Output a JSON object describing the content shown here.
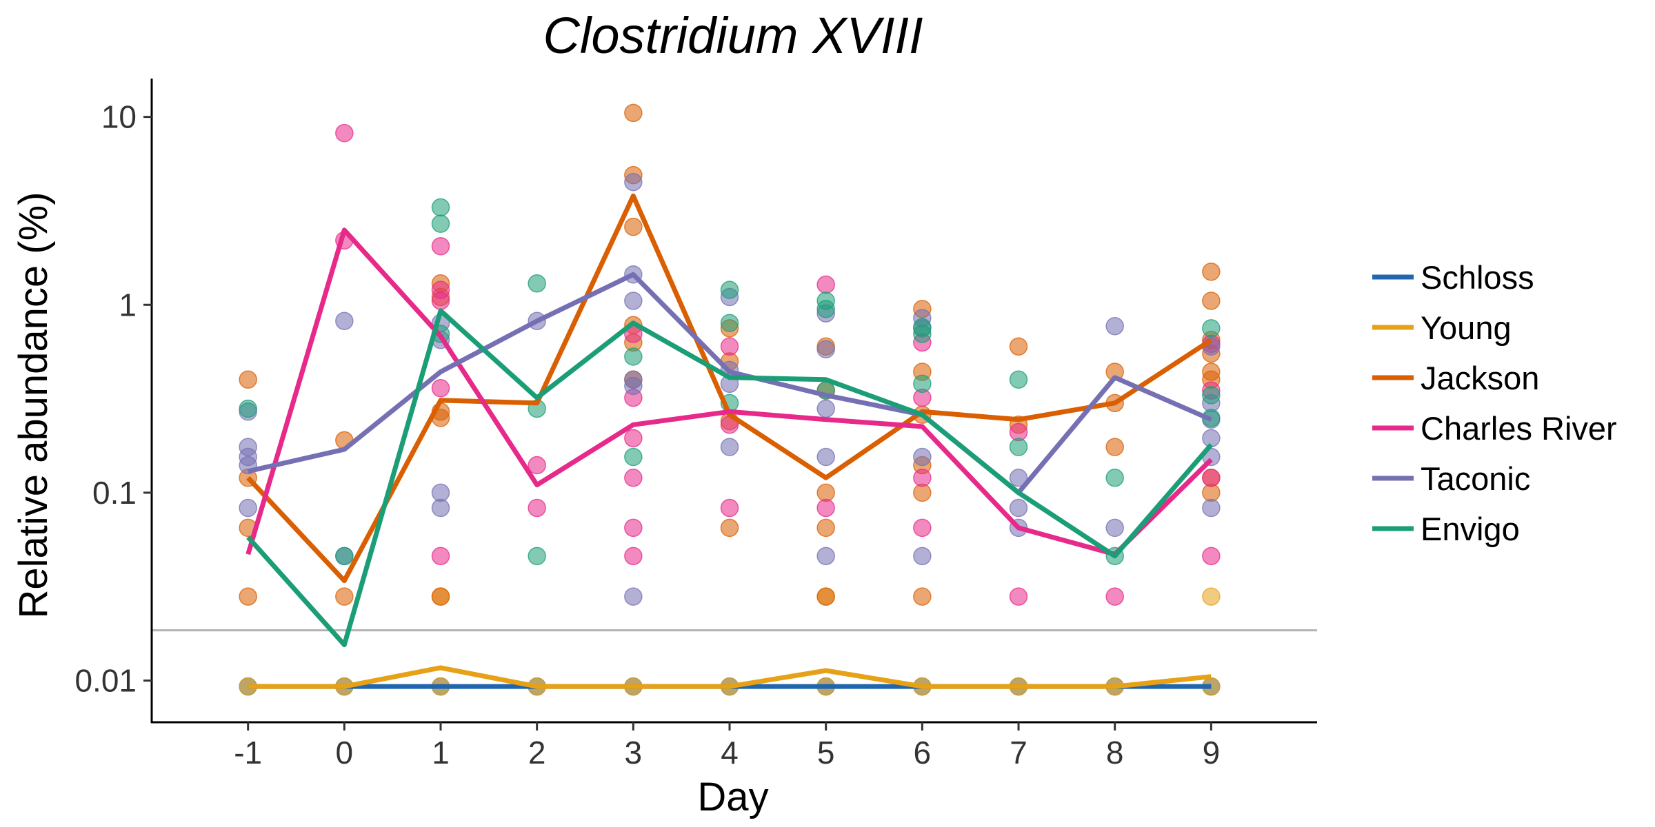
{
  "chart_data": {
    "type": "line",
    "title": "Clostridium XVIII",
    "xlabel": "Day",
    "ylabel": "Relative abundance (%)",
    "x": [
      -1,
      0,
      1,
      2,
      3,
      4,
      5,
      6,
      7,
      8,
      9
    ],
    "x_ticks": [
      "-1",
      "0",
      "1",
      "2",
      "3",
      "4",
      "5",
      "6",
      "7",
      "8",
      "9"
    ],
    "y_scale": "log",
    "ylim": [
      0.006,
      16
    ],
    "y_ticks": [
      {
        "value": 0.01,
        "label": "0.01"
      },
      {
        "value": 0.1,
        "label": "0.1"
      },
      {
        "value": 1,
        "label": "1"
      },
      {
        "value": 10,
        "label": "10"
      }
    ],
    "detection_limit": 0.0185,
    "grid": false,
    "legend_position": "right",
    "series": [
      {
        "name": "Schloss",
        "color": "#2166ac",
        "values": [
          0.0093,
          0.0093,
          0.0093,
          0.0093,
          0.0093,
          0.0093,
          0.0093,
          0.0093,
          0.0093,
          0.0093,
          0.0093
        ],
        "points": [
          [
            -1,
            0.0093
          ],
          [
            0,
            0.0093
          ],
          [
            1,
            0.0093
          ],
          [
            2,
            0.0093
          ],
          [
            3,
            0.0093
          ],
          [
            4,
            0.0093
          ],
          [
            5,
            0.0093
          ],
          [
            6,
            0.0093
          ],
          [
            7,
            0.0093
          ],
          [
            8,
            0.0093
          ],
          [
            9,
            0.0093
          ]
        ]
      },
      {
        "name": "Young",
        "color": "#e6a117",
        "values": [
          0.0093,
          0.0093,
          0.0117,
          0.0093,
          0.0093,
          0.0093,
          0.0113,
          0.0093,
          0.0093,
          0.0093,
          0.0105
        ],
        "points": [
          [
            -1,
            0.0093
          ],
          [
            0,
            0.0093
          ],
          [
            1,
            0.0093
          ],
          [
            2,
            0.0093
          ],
          [
            3,
            0.0093
          ],
          [
            4,
            0.0093
          ],
          [
            5,
            0.0093
          ],
          [
            6,
            0.0093
          ],
          [
            7,
            0.0093
          ],
          [
            8,
            0.0093
          ],
          [
            9,
            0.0093
          ],
          [
            9,
            0.028
          ],
          [
            5,
            0.028
          ],
          [
            1,
            0.028
          ]
        ]
      },
      {
        "name": "Jackson",
        "color": "#d95f02",
        "values": [
          0.12,
          0.034,
          0.31,
          0.3,
          3.8,
          0.26,
          0.12,
          0.27,
          0.245,
          0.3,
          0.65
        ],
        "points": [
          [
            -1,
            0.4
          ],
          [
            -1,
            0.12
          ],
          [
            -1,
            0.065
          ],
          [
            -1,
            0.028
          ],
          [
            0,
            0.19
          ],
          [
            0,
            0.028
          ],
          [
            1,
            1.3
          ],
          [
            1,
            1.1
          ],
          [
            1,
            0.27
          ],
          [
            1,
            0.25
          ],
          [
            1,
            0.028
          ],
          [
            3,
            10.5
          ],
          [
            3,
            4.9
          ],
          [
            3,
            2.6
          ],
          [
            3,
            0.78
          ],
          [
            3,
            0.63
          ],
          [
            3,
            0.4
          ],
          [
            4,
            0.75
          ],
          [
            4,
            0.5
          ],
          [
            4,
            0.24
          ],
          [
            4,
            0.065
          ],
          [
            5,
            0.6
          ],
          [
            5,
            0.35
          ],
          [
            5,
            0.1
          ],
          [
            5,
            0.065
          ],
          [
            5,
            0.028
          ],
          [
            6,
            0.95
          ],
          [
            6,
            0.44
          ],
          [
            6,
            0.26
          ],
          [
            6,
            0.14
          ],
          [
            6,
            0.1
          ],
          [
            6,
            0.028
          ],
          [
            7,
            0.6
          ],
          [
            7,
            0.23
          ],
          [
            8,
            0.44
          ],
          [
            8,
            0.3
          ],
          [
            8,
            0.175
          ],
          [
            9,
            1.5
          ],
          [
            9,
            1.05
          ],
          [
            9,
            0.65
          ],
          [
            9,
            0.55
          ],
          [
            9,
            0.44
          ],
          [
            9,
            0.4
          ],
          [
            9,
            0.12
          ],
          [
            9,
            0.1
          ]
        ]
      },
      {
        "name": "Charles River",
        "color": "#e7298a",
        "values": [
          0.047,
          2.5,
          0.68,
          0.11,
          0.23,
          0.27,
          0.245,
          0.225,
          0.065,
          0.047,
          0.15
        ],
        "points": [
          [
            0,
            8.2
          ],
          [
            0,
            2.2
          ],
          [
            1,
            2.05
          ],
          [
            1,
            1.2
          ],
          [
            1,
            1.05
          ],
          [
            1,
            0.36
          ],
          [
            1,
            0.046
          ],
          [
            2,
            0.14
          ],
          [
            2,
            0.083
          ],
          [
            3,
            0.7
          ],
          [
            3,
            0.32
          ],
          [
            3,
            0.195
          ],
          [
            3,
            0.12
          ],
          [
            3,
            0.065
          ],
          [
            3,
            0.046
          ],
          [
            4,
            0.6
          ],
          [
            4,
            0.23
          ],
          [
            4,
            0.083
          ],
          [
            5,
            1.28
          ],
          [
            5,
            0.083
          ],
          [
            6,
            0.63
          ],
          [
            6,
            0.32
          ],
          [
            6,
            0.12
          ],
          [
            6,
            0.065
          ],
          [
            7,
            0.21
          ],
          [
            7,
            0.028
          ],
          [
            8,
            0.028
          ],
          [
            9,
            0.62
          ],
          [
            9,
            0.35
          ],
          [
            9,
            0.12
          ],
          [
            9,
            0.046
          ]
        ]
      },
      {
        "name": "Taconic",
        "color": "#7570b3",
        "values": [
          0.13,
          0.17,
          0.44,
          0.82,
          1.45,
          0.44,
          0.33,
          0.26,
          0.1,
          0.41,
          0.245
        ],
        "points": [
          [
            -1,
            0.27
          ],
          [
            -1,
            0.175
          ],
          [
            -1,
            0.155
          ],
          [
            -1,
            0.14
          ],
          [
            -1,
            0.083
          ],
          [
            0,
            0.82
          ],
          [
            0,
            0.046
          ],
          [
            1,
            0.8
          ],
          [
            1,
            0.65
          ],
          [
            1,
            0.1
          ],
          [
            1,
            0.083
          ],
          [
            2,
            0.82
          ],
          [
            3,
            4.5
          ],
          [
            3,
            1.45
          ],
          [
            3,
            1.05
          ],
          [
            3,
            0.4
          ],
          [
            3,
            0.37
          ],
          [
            3,
            0.028
          ],
          [
            4,
            1.1
          ],
          [
            4,
            0.45
          ],
          [
            4,
            0.38
          ],
          [
            4,
            0.175
          ],
          [
            5,
            0.9
          ],
          [
            5,
            0.58
          ],
          [
            5,
            0.28
          ],
          [
            5,
            0.155
          ],
          [
            5,
            0.046
          ],
          [
            6,
            0.85
          ],
          [
            6,
            0.75
          ],
          [
            6,
            0.155
          ],
          [
            6,
            0.046
          ],
          [
            7,
            0.12
          ],
          [
            7,
            0.083
          ],
          [
            7,
            0.065
          ],
          [
            8,
            0.77
          ],
          [
            8,
            0.065
          ],
          [
            9,
            0.6
          ],
          [
            9,
            0.3
          ],
          [
            9,
            0.245
          ],
          [
            9,
            0.195
          ],
          [
            9,
            0.155
          ],
          [
            9,
            0.083
          ]
        ]
      },
      {
        "name": "Envigo",
        "color": "#1b9e77",
        "values": [
          0.058,
          0.0155,
          0.93,
          0.32,
          0.8,
          0.41,
          0.4,
          0.26,
          0.1,
          0.046,
          0.18
        ],
        "points": [
          [
            -1,
            0.28
          ],
          [
            0,
            0.046
          ],
          [
            1,
            3.3
          ],
          [
            1,
            2.7
          ],
          [
            1,
            0.7
          ],
          [
            2,
            1.3
          ],
          [
            2,
            0.28
          ],
          [
            2,
            0.046
          ],
          [
            3,
            0.53
          ],
          [
            3,
            0.155
          ],
          [
            4,
            1.2
          ],
          [
            4,
            0.8
          ],
          [
            4,
            0.3
          ],
          [
            5,
            1.05
          ],
          [
            5,
            0.95
          ],
          [
            5,
            0.35
          ],
          [
            6,
            0.76
          ],
          [
            6,
            0.7
          ],
          [
            6,
            0.38
          ],
          [
            7,
            0.4
          ],
          [
            7,
            0.175
          ],
          [
            8,
            0.12
          ],
          [
            8,
            0.046
          ],
          [
            9,
            0.75
          ],
          [
            9,
            0.33
          ],
          [
            9,
            0.25
          ]
        ]
      }
    ]
  }
}
